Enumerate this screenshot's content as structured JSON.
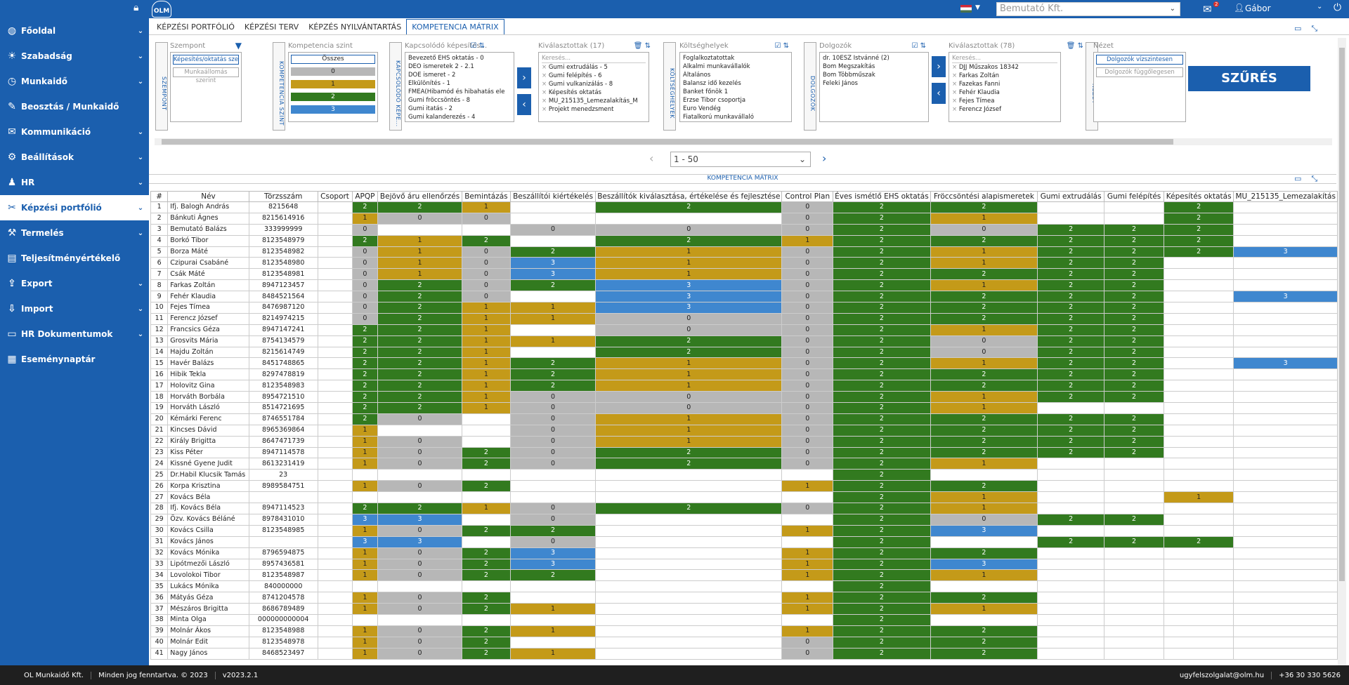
{
  "topbar": {
    "company": "Bemutató Kft.",
    "user": "Gábor",
    "mail_count": "2",
    "logo": "OLM"
  },
  "sidebar": {
    "items": [
      {
        "label": "Főoldal",
        "icon": "globe-icon",
        "glyph": "◍"
      },
      {
        "label": "Szabadság",
        "icon": "sun-icon",
        "glyph": "☀"
      },
      {
        "label": "Munkaidő",
        "icon": "clock-icon",
        "glyph": "◷"
      },
      {
        "label": "Beosztás / Munkaidő",
        "icon": "tools-icon",
        "glyph": "✎"
      },
      {
        "label": "Kommunikáció",
        "icon": "chat-icon",
        "glyph": "✉"
      },
      {
        "label": "Beállítások",
        "icon": "gear-icon",
        "glyph": "⚙"
      },
      {
        "label": "HR",
        "icon": "people-icon",
        "glyph": "♟"
      },
      {
        "label": "Képzési portfólió",
        "icon": "tools-icon",
        "glyph": "✂"
      },
      {
        "label": "Termelés",
        "icon": "factory-icon",
        "glyph": "⚒"
      },
      {
        "label": "Teljesítményértékelő",
        "icon": "chart-icon",
        "glyph": "▤"
      },
      {
        "label": "Export",
        "icon": "export-icon",
        "glyph": "⇪"
      },
      {
        "label": "Import",
        "icon": "import-icon",
        "glyph": "⇩"
      },
      {
        "label": "HR Dokumentumok",
        "icon": "folder-icon",
        "glyph": "▭"
      },
      {
        "label": "Eseménynaptár",
        "icon": "calendar-icon",
        "glyph": "▦"
      }
    ]
  },
  "tabs": [
    {
      "label": "KÉPZÉSI PORTFÓLIÓ"
    },
    {
      "label": "KÉPZÉSI TERV"
    },
    {
      "label": "KÉPZÉS NYILVÁNTARTÁS"
    },
    {
      "label": "KOMPETENCIA MÁTRIX"
    }
  ],
  "filters": {
    "szempont": {
      "vlabel": "SZEMPONT",
      "title": "Szempont",
      "btn1": "Képesítés/oktatás szerint",
      "btn2": "Munkaállomás szerint"
    },
    "kompetencia": {
      "vlabel": "KOMPETENCIA SZINT",
      "title": "Kompetencia szint",
      "all": "Összes",
      "levels": [
        "0",
        "1",
        "2",
        "3"
      ]
    },
    "kepesites": {
      "vlabel": "KAPCSOLÓDÓ KÉPE...",
      "title": "Kapcsolódó képesítés...",
      "items": [
        "Bevezető EHS oktatás - 0",
        "DEO ismeretek 2 - 2.1",
        "DOE ismeret - 2",
        "Elkülönítés - 1",
        "FMEA(Hibamód és hibahatás ele",
        "Gumi fröccsöntés - 8",
        "Gumi itatás - 2",
        "Gumi kalanderezés - 4"
      ]
    },
    "kivalasztottak1": {
      "title": "Kiválasztottak (17)",
      "search": "Keresés...",
      "items": [
        "Gumi extrudálás - 5",
        "Gumi felépítés - 6",
        "Gumi vulkanizálás - 8",
        "Képesítés oktatás",
        "MU_215135_Lemezalakítás_M",
        "Projekt menedzsment"
      ]
    },
    "koltseg": {
      "vlabel": "KÖLTSÉGHELYEK",
      "title": "Költséghelyek",
      "items": [
        "Foglalkoztatottak",
        "Alkalmi munkavállalók",
        "Általános",
        "Balansz idő kezelés",
        "Banket főnök 1",
        "Erzse Tibor csoportja",
        "Euro Vendég",
        "Fiatalkorú munkavállaló"
      ]
    },
    "dolgozok": {
      "vlabel": "DOLGOZÓK",
      "title": "Dolgozók",
      "items": [
        "dr. 10ESZ Istvánné (2)",
        "Bom Megszakítás",
        "Bom Többműszak",
        "Feleki János"
      ]
    },
    "kivalasztottak2": {
      "title": "Kiválasztottak (78)",
      "search": "Keresés...",
      "items": [
        "DJJ Műszakos 18342",
        "Farkas Zoltán",
        "Fazekas Fanni",
        "Fehér Klaudia",
        "Fejes Tímea",
        "Ferencz József"
      ]
    },
    "nezet": {
      "vlabel": "NÉZET",
      "title": "Nézet",
      "btn1": "Dolgozók vízszintesen",
      "btn2": "Dolgozók függőlegesen"
    },
    "szures": "SZŰRÉS"
  },
  "pager": {
    "range": "1 - 50"
  },
  "matrix": {
    "title": "KOMPETENCIA MÁTRIX",
    "columns": [
      "#",
      "Név",
      "Törzsszám",
      "Csoport",
      "APQP",
      "Bejövő áru ellenőrzés",
      "Bemintázás",
      "Beszállítói kiértékelés",
      "Beszállítók kiválasztása, értékelése és fejlesztése",
      "Control Plan",
      "Éves ismétlő EHS oktatás",
      "Fröccsöntési alapismeretek",
      "Gumi extrudálás",
      "Gumi felépítés",
      "Képesítés oktatás",
      "MU_215135_Lemezalakítás"
    ],
    "rows": [
      {
        "n": "1",
        "name": "Ifj. Balogh András",
        "id": "8215648",
        "v": [
          "2",
          "2",
          "1",
          "",
          "2",
          "0",
          "2",
          "2",
          "",
          "",
          "2",
          ""
        ]
      },
      {
        "n": "2",
        "name": "Bánkuti Ágnes",
        "id": "8215614916",
        "v": [
          "1",
          "0",
          "0",
          "",
          "",
          "0",
          "2",
          "1",
          "",
          "",
          "2",
          ""
        ]
      },
      {
        "n": "3",
        "name": "Bemutató Balázs",
        "id": "333999999",
        "v": [
          "0",
          "",
          "",
          "0",
          "0",
          "0",
          "2",
          "0",
          "2",
          "2",
          "2",
          ""
        ]
      },
      {
        "n": "4",
        "name": "Borkó Tibor",
        "id": "8123548979",
        "v": [
          "2",
          "1",
          "2",
          "",
          "2",
          "1",
          "2",
          "2",
          "2",
          "2",
          "2",
          ""
        ]
      },
      {
        "n": "5",
        "name": "Borza Máté",
        "id": "8123548982",
        "v": [
          "0",
          "1",
          "0",
          "2",
          "1",
          "0",
          "2",
          "1",
          "2",
          "2",
          "2",
          "3"
        ]
      },
      {
        "n": "6",
        "name": "Czipurai Csabáné",
        "id": "8123548980",
        "v": [
          "0",
          "1",
          "0",
          "3",
          "1",
          "0",
          "2",
          "1",
          "2",
          "2",
          "",
          ""
        ]
      },
      {
        "n": "7",
        "name": "Csák Máté",
        "id": "8123548981",
        "v": [
          "0",
          "1",
          "0",
          "3",
          "1",
          "0",
          "2",
          "2",
          "2",
          "2",
          "",
          ""
        ]
      },
      {
        "n": "8",
        "name": "Farkas Zoltán",
        "id": "8947123457",
        "v": [
          "0",
          "2",
          "0",
          "2",
          "3",
          "0",
          "2",
          "1",
          "2",
          "2",
          "",
          ""
        ]
      },
      {
        "n": "9",
        "name": "Fehér Klaudia",
        "id": "8484521564",
        "v": [
          "0",
          "2",
          "0",
          "",
          "3",
          "0",
          "2",
          "2",
          "2",
          "2",
          "",
          "3"
        ]
      },
      {
        "n": "10",
        "name": "Fejes Tímea",
        "id": "8476987120",
        "v": [
          "0",
          "2",
          "1",
          "1",
          "3",
          "0",
          "2",
          "2",
          "2",
          "2",
          "",
          ""
        ]
      },
      {
        "n": "11",
        "name": "Ferencz József",
        "id": "8214974215",
        "v": [
          "0",
          "2",
          "1",
          "1",
          "0",
          "0",
          "2",
          "2",
          "2",
          "2",
          "",
          ""
        ]
      },
      {
        "n": "12",
        "name": "Francsics Géza",
        "id": "8947147241",
        "v": [
          "2",
          "2",
          "1",
          "",
          "0",
          "0",
          "2",
          "1",
          "2",
          "2",
          "",
          ""
        ]
      },
      {
        "n": "13",
        "name": "Grosvits Mária",
        "id": "8754134579",
        "v": [
          "2",
          "2",
          "1",
          "1",
          "2",
          "0",
          "2",
          "0",
          "2",
          "2",
          "",
          ""
        ]
      },
      {
        "n": "14",
        "name": "Hajdu Zoltán",
        "id": "8215614749",
        "v": [
          "2",
          "2",
          "1",
          "",
          "2",
          "0",
          "2",
          "0",
          "2",
          "2",
          "",
          ""
        ]
      },
      {
        "n": "15",
        "name": "Havér Balázs",
        "id": "8451748865",
        "v": [
          "2",
          "2",
          "1",
          "2",
          "1",
          "0",
          "2",
          "1",
          "2",
          "2",
          "",
          "3"
        ]
      },
      {
        "n": "16",
        "name": "Hibik Tekla",
        "id": "8297478819",
        "v": [
          "2",
          "2",
          "1",
          "2",
          "1",
          "0",
          "2",
          "2",
          "2",
          "2",
          "",
          ""
        ]
      },
      {
        "n": "17",
        "name": "Holovitz Gina",
        "id": "8123548983",
        "v": [
          "2",
          "2",
          "1",
          "2",
          "1",
          "0",
          "2",
          "2",
          "2",
          "2",
          "",
          ""
        ]
      },
      {
        "n": "18",
        "name": "Horváth Borbála",
        "id": "8954721510",
        "v": [
          "2",
          "2",
          "1",
          "0",
          "0",
          "0",
          "2",
          "1",
          "2",
          "2",
          "",
          ""
        ]
      },
      {
        "n": "19",
        "name": "Horváth László",
        "id": "8514721695",
        "v": [
          "2",
          "2",
          "1",
          "0",
          "0",
          "0",
          "2",
          "1",
          "",
          "",
          "",
          ""
        ]
      },
      {
        "n": "20",
        "name": "Kémárki Ferenc",
        "id": "8746551784",
        "v": [
          "2",
          "0",
          "",
          "0",
          "1",
          "0",
          "2",
          "2",
          "2",
          "2",
          "",
          ""
        ]
      },
      {
        "n": "21",
        "name": "Kincses Dávid",
        "id": "8965369864",
        "v": [
          "1",
          "",
          "",
          "0",
          "1",
          "0",
          "2",
          "2",
          "2",
          "2",
          "",
          ""
        ]
      },
      {
        "n": "22",
        "name": "Király Brigitta",
        "id": "8647471739",
        "v": [
          "1",
          "0",
          "",
          "0",
          "1",
          "0",
          "2",
          "2",
          "2",
          "2",
          "",
          ""
        ]
      },
      {
        "n": "23",
        "name": "Kiss Péter",
        "id": "8947114578",
        "v": [
          "1",
          "0",
          "2",
          "0",
          "2",
          "0",
          "2",
          "2",
          "2",
          "2",
          "",
          ""
        ]
      },
      {
        "n": "24",
        "name": "Kissné Gyene Judit",
        "id": "8613231419",
        "v": [
          "1",
          "0",
          "2",
          "0",
          "2",
          "0",
          "2",
          "1",
          "",
          "",
          "",
          ""
        ]
      },
      {
        "n": "25",
        "name": "Dr.Habil Klucsik Tamás",
        "id": "23",
        "v": [
          "",
          "",
          "",
          "",
          "",
          "",
          "2",
          "",
          "",
          "",
          "",
          ""
        ]
      },
      {
        "n": "26",
        "name": "Korpa Krisztina",
        "id": "8989584751",
        "v": [
          "1",
          "0",
          "2",
          "",
          "",
          "1",
          "2",
          "2",
          "",
          "",
          "",
          ""
        ]
      },
      {
        "n": "27",
        "name": "Kovács Béla",
        "id": "",
        "v": [
          "",
          "",
          "",
          "",
          "",
          "",
          "2",
          "1",
          "",
          "",
          "1",
          ""
        ]
      },
      {
        "n": "28",
        "name": "Ifj. Kovács Béla",
        "id": "8947114523",
        "v": [
          "2",
          "2",
          "1",
          "0",
          "2",
          "0",
          "2",
          "1",
          "",
          "",
          "",
          ""
        ]
      },
      {
        "n": "29",
        "name": "Özv. Kovács Béláné",
        "id": "8978431010",
        "v": [
          "3",
          "3",
          "",
          "0",
          "",
          "",
          "2",
          "0",
          "2",
          "2",
          "",
          ""
        ]
      },
      {
        "n": "30",
        "name": "Kovács Csilla",
        "id": "8123548985",
        "v": [
          "1",
          "0",
          "2",
          "2",
          "",
          "1",
          "2",
          "3",
          "",
          "",
          "",
          ""
        ]
      },
      {
        "n": "31",
        "name": "Kovács János",
        "id": "",
        "v": [
          "3",
          "3",
          "",
          "0",
          "",
          "",
          "2",
          "",
          "2",
          "2",
          "2",
          ""
        ]
      },
      {
        "n": "32",
        "name": "Kovács Mónika",
        "id": "8796594875",
        "v": [
          "1",
          "0",
          "2",
          "3",
          "",
          "1",
          "2",
          "2",
          "",
          "",
          "",
          ""
        ]
      },
      {
        "n": "33",
        "name": "Lipótmezői László",
        "id": "8957436581",
        "v": [
          "1",
          "0",
          "2",
          "3",
          "",
          "1",
          "2",
          "3",
          "",
          "",
          "",
          ""
        ]
      },
      {
        "n": "34",
        "name": "Lovolokoi Tibor",
        "id": "8123548987",
        "v": [
          "1",
          "0",
          "2",
          "2",
          "",
          "1",
          "2",
          "1",
          "",
          "",
          "",
          ""
        ]
      },
      {
        "n": "35",
        "name": "Lukács Mónika",
        "id": "840000000",
        "v": [
          "",
          "",
          "",
          "",
          "",
          "",
          "2",
          "",
          "",
          "",
          "",
          ""
        ]
      },
      {
        "n": "36",
        "name": "Mátyás Géza",
        "id": "8741204578",
        "v": [
          "1",
          "0",
          "2",
          "",
          "",
          "1",
          "2",
          "2",
          "",
          "",
          "",
          ""
        ]
      },
      {
        "n": "37",
        "name": "Mészáros Brigitta",
        "id": "8686789489",
        "v": [
          "1",
          "0",
          "2",
          "1",
          "",
          "1",
          "2",
          "1",
          "",
          "",
          "",
          ""
        ]
      },
      {
        "n": "38",
        "name": "Minta Olga",
        "id": "000000000004",
        "v": [
          "",
          "",
          "",
          "",
          "",
          "",
          "2",
          "",
          "",
          "",
          "",
          ""
        ]
      },
      {
        "n": "39",
        "name": "Molnár Ákos",
        "id": "8123548988",
        "v": [
          "1",
          "0",
          "2",
          "1",
          "",
          "1",
          "2",
          "2",
          "",
          "",
          "",
          ""
        ]
      },
      {
        "n": "40",
        "name": "Molnár Edit",
        "id": "8123548978",
        "v": [
          "1",
          "0",
          "2",
          "",
          "",
          "0",
          "2",
          "2",
          "",
          "",
          "",
          ""
        ]
      },
      {
        "n": "41",
        "name": "Nagy János",
        "id": "8468523497",
        "v": [
          "1",
          "0",
          "2",
          "1",
          "",
          "0",
          "2",
          "2",
          "",
          "",
          "",
          ""
        ]
      }
    ]
  },
  "footer": {
    "company": "OL Munkaidő Kft.",
    "rights": "Minden jog fenntartva. © 2023",
    "version": "v2023.2.1",
    "email": "ugyfelszolgalat@olm.hu",
    "phone": "+36 30 330 5626"
  }
}
